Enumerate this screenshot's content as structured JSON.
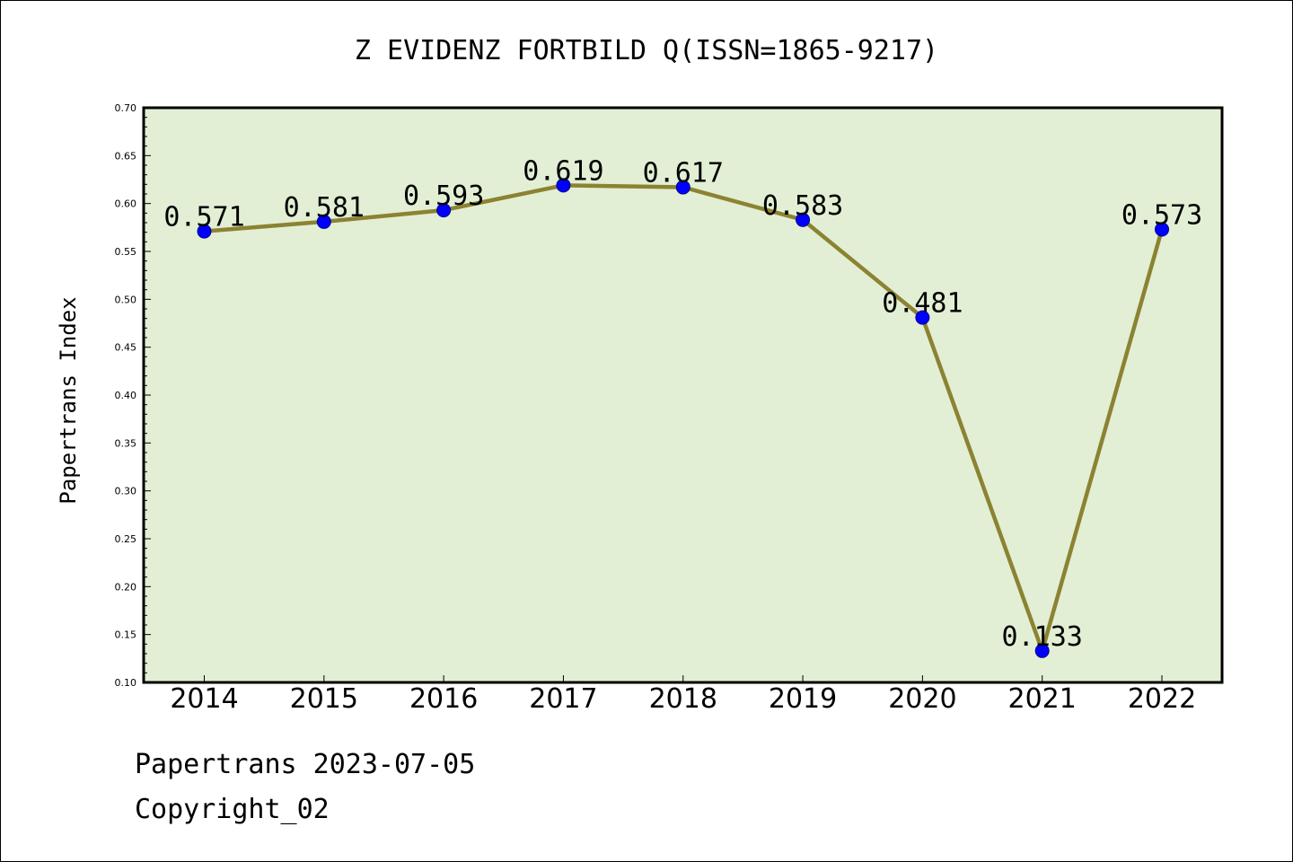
{
  "chart_data": {
    "type": "line",
    "title": "Z EVIDENZ FORTBILD Q(ISSN=1865-9217)",
    "xlabel": "",
    "ylabel": "Papertrans Index",
    "categories": [
      "2014",
      "2015",
      "2016",
      "2017",
      "2018",
      "2019",
      "2020",
      "2021",
      "2022"
    ],
    "values": [
      0.571,
      0.581,
      0.593,
      0.619,
      0.617,
      0.583,
      0.481,
      0.133,
      0.573
    ],
    "data_labels": [
      "0.571",
      "0.581",
      "0.593",
      "0.619",
      "0.617",
      "0.583",
      "0.481",
      "0.133",
      "0.573"
    ],
    "ylim": [
      0.1,
      0.7
    ],
    "yticks": [
      "0.10",
      "0.15",
      "0.20",
      "0.25",
      "0.30",
      "0.35",
      "0.40",
      "0.45",
      "0.50",
      "0.55",
      "0.60",
      "0.65",
      "0.70"
    ],
    "grid": false,
    "colors": {
      "plot_background": "#e2efd5",
      "line": "#8b8332",
      "marker": "#0000ff",
      "marker_edge": "#00008b"
    }
  },
  "footer": {
    "line1": "Papertrans 2023-07-05",
    "line2": "Copyright_02"
  }
}
